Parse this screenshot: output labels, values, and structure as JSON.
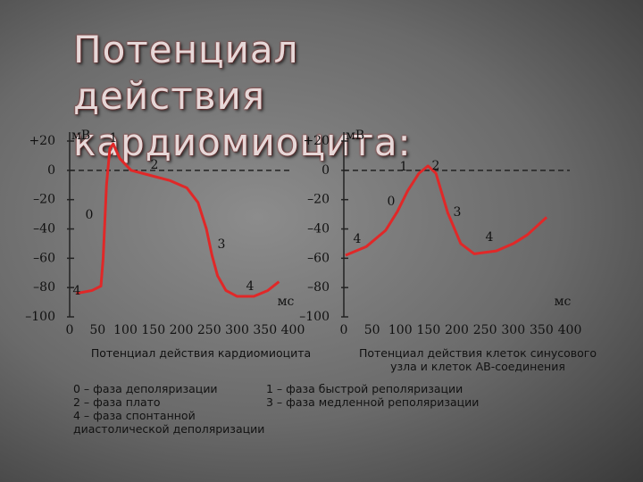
{
  "title": "Потенциал действия кардиомиоцита:",
  "chart_data": [
    {
      "type": "line",
      "caption": "Потенциал действия кардиомиоцита",
      "y_label": "мВ",
      "x_label": "мс",
      "xlim": [
        0,
        400
      ],
      "xticks": [
        0,
        50,
        100,
        150,
        200,
        250,
        300,
        350,
        400
      ],
      "ylim": [
        -100,
        20
      ],
      "yticks": [
        {
          "value": 20,
          "label": "+20"
        },
        0,
        {
          "value": -20,
          "label": "–20"
        },
        {
          "value": -40,
          "label": "–40"
        },
        {
          "value": -60,
          "label": "–60"
        },
        {
          "value": -80,
          "label": "–80"
        },
        {
          "value": -100,
          "label": "–100"
        }
      ],
      "annotations": [
        "1",
        "2",
        "0",
        "3",
        "4",
        "4"
      ],
      "x": [
        12,
        40,
        56,
        60,
        66,
        72,
        78,
        90,
        110,
        140,
        180,
        210,
        230,
        245,
        255,
        265,
        280,
        300,
        330,
        355,
        375
      ],
      "series": [
        {
          "color": "#e02828",
          "values": [
            -84,
            -82,
            -79,
            -60,
            -10,
            15,
            18,
            8,
            0,
            -3,
            -7,
            -12,
            -22,
            -40,
            -58,
            -72,
            -82,
            -86,
            -86,
            -82,
            -76
          ]
        }
      ]
    },
    {
      "type": "line",
      "caption": "Потенциал действия клеток синусового узла и клеток АВ-соединения",
      "y_label": "мВ",
      "x_label": "мс",
      "xlim": [
        0,
        400
      ],
      "xticks": [
        0,
        50,
        100,
        150,
        200,
        250,
        300,
        350,
        400
      ],
      "ylim": [
        -100,
        20
      ],
      "yticks": [
        {
          "value": 20,
          "label": "+20"
        },
        0,
        {
          "value": -20,
          "label": "–20"
        },
        {
          "value": -40,
          "label": "–40"
        },
        {
          "value": -60,
          "label": "–60"
        },
        {
          "value": -80,
          "label": "–80"
        },
        {
          "value": -100,
          "label": "–100"
        }
      ],
      "annotations": [
        "1",
        "2",
        "0",
        "3",
        "4",
        "4"
      ],
      "x": [
        3,
        40,
        74,
        95,
        113,
        133,
        149,
        163,
        184,
        207,
        231,
        270,
        300,
        325,
        359
      ],
      "series": [
        {
          "color": "#e02828",
          "values": [
            -58,
            -52,
            -41,
            -28,
            -14,
            -2,
            3,
            -2,
            -29,
            -50,
            -57,
            -55,
            -50,
            -44,
            -32
          ]
        }
      ]
    }
  ],
  "legend": [
    "0 – фаза деполяризации",
    "1 – фаза быстрой реполяризации",
    "2 – фаза плато",
    "3 – фаза медленной реполяризации",
    "4 – фаза спонтанной диастолической деполяризации"
  ]
}
